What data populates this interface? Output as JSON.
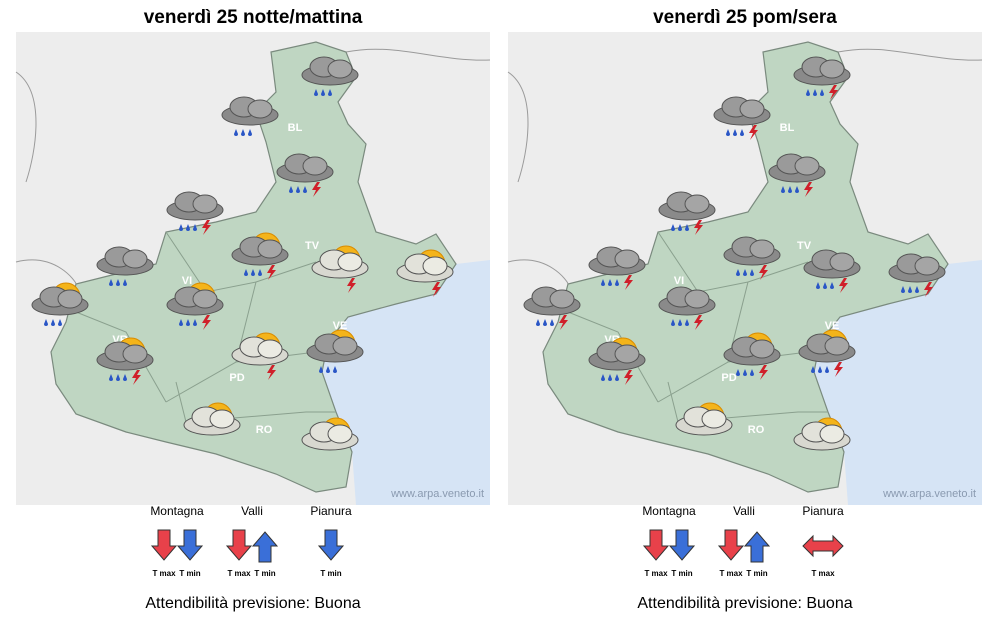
{
  "panels": [
    {
      "title": "venerdì 25 notte/mattina",
      "provinces": [
        "BL",
        "TV",
        "VI",
        "VE",
        "VR",
        "PD",
        "RO"
      ],
      "watermark": "www.arpa.veneto.it",
      "zones": [
        {
          "name": "Montagna",
          "arrows": [
            "T max",
            "T min"
          ]
        },
        {
          "name": "Valli",
          "arrows": [
            "T max",
            "T min"
          ]
        },
        {
          "name": "Pianura",
          "arrows": [
            "T min"
          ]
        }
      ],
      "reliability": "Attendibilità previsione: Buona"
    },
    {
      "title": "venerdì 25 pom/sera",
      "provinces": [
        "BL",
        "TV",
        "VI",
        "VE",
        "VR",
        "PD",
        "RO"
      ],
      "watermark": "www.arpa.veneto.it",
      "zones": [
        {
          "name": "Montagna",
          "arrows": [
            "T max",
            "T min"
          ]
        },
        {
          "name": "Valli",
          "arrows": [
            "T max",
            "T min"
          ]
        },
        {
          "name": "Pianura",
          "arrows": [
            "T max"
          ]
        }
      ],
      "reliability": "Attendibilità previsione: Buona"
    }
  ]
}
